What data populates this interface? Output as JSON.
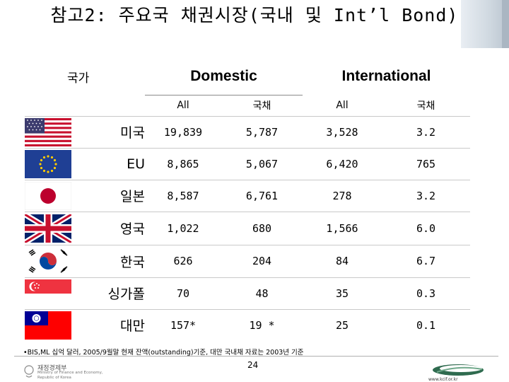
{
  "title": "참고2: 주요국 채권시장(국내 및 Int’l Bond)",
  "header": {
    "country_label": "국가",
    "domestic_label": "Domestic",
    "international_label": "International",
    "sub_all": "All",
    "sub_gov": "국채"
  },
  "rows": [
    {
      "country": "미국",
      "flag_icon": "us-flag-icon",
      "dom_all": "19,839",
      "dom_gov": "5,787",
      "int_all": "3,528",
      "int_gov": "3.2"
    },
    {
      "country": "EU",
      "flag_icon": "eu-flag-icon",
      "dom_all": "8,865",
      "dom_gov": "5,067",
      "int_all": "6,420",
      "int_gov": "765"
    },
    {
      "country": "일본",
      "flag_icon": "japan-flag-icon",
      "dom_all": "8,587",
      "dom_gov": "6,761",
      "int_all": "278",
      "int_gov": "3.2"
    },
    {
      "country": "영국",
      "flag_icon": "uk-flag-icon",
      "dom_all": "1,022",
      "dom_gov": "680",
      "int_all": "1,566",
      "int_gov": "6.0"
    },
    {
      "country": "한국",
      "flag_icon": "korea-flag-icon",
      "dom_all": "626",
      "dom_gov": "204",
      "int_all": "84",
      "int_gov": "6.7"
    },
    {
      "country": "싱가폴",
      "flag_icon": "singapore-flag-icon",
      "dom_all": "70",
      "dom_gov": "48",
      "int_all": "35",
      "int_gov": "0.3"
    },
    {
      "country": "대만",
      "flag_icon": "taiwan-flag-icon",
      "dom_all": "157*",
      "dom_gov": "19 *",
      "int_all": "25",
      "int_gov": "0.1"
    }
  ],
  "footnote": "•BIS,ML 십억 달러, 2005/9월말 현재 잔액(outstanding)기준, 대만 국내채 자료는 2003년 기준",
  "page_number": "24",
  "footer": {
    "ministry_ko": "재정경제부",
    "ministry_en": "Ministry of Finance and Economy, Republic of Korea",
    "site": "www.kcif.or.kr"
  }
}
